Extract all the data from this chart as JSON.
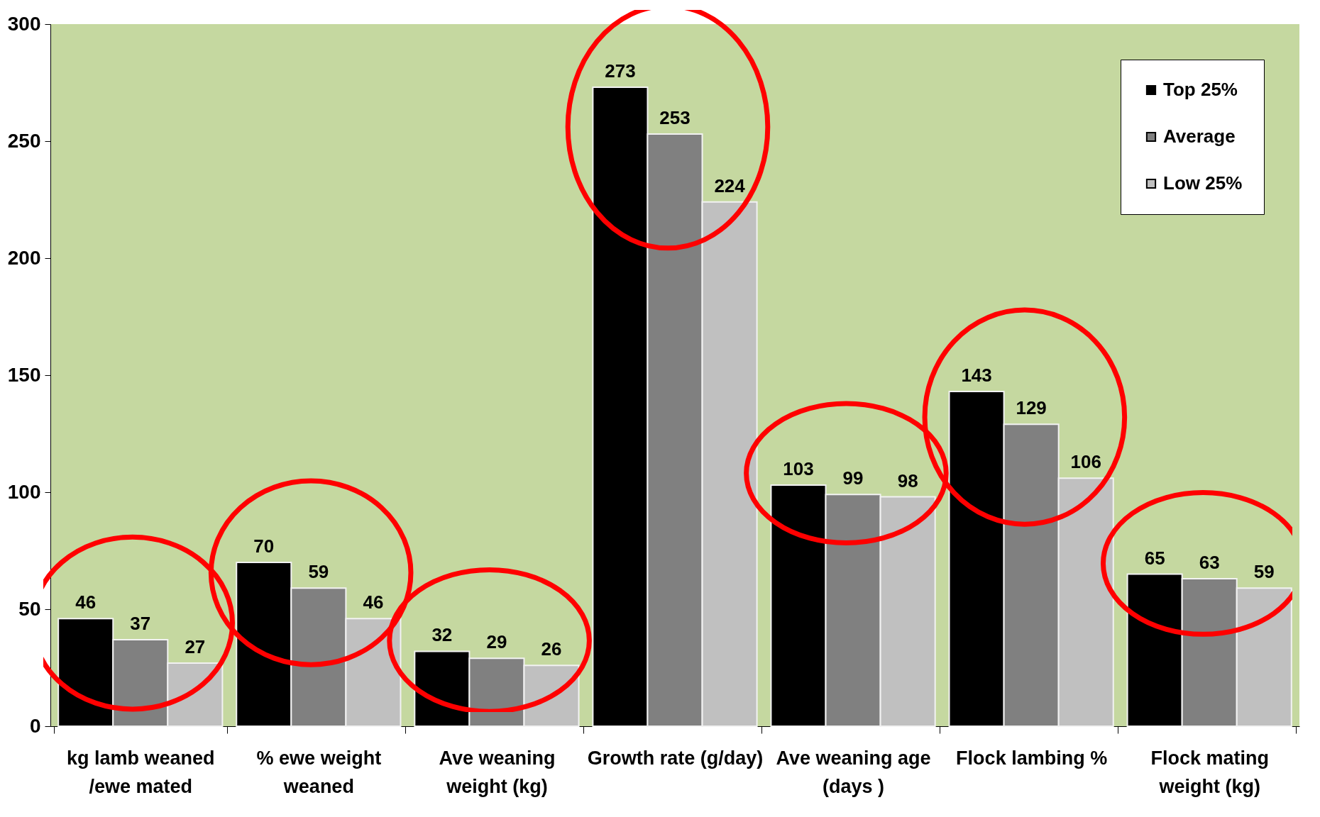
{
  "chart_data": {
    "type": "bar",
    "categories": [
      "kg lamb weaned\n/ewe mated",
      "% ewe weight\nweaned",
      "Ave weaning\nweight (kg)",
      "Growth rate (g/day)",
      "Ave  weaning age\n(days )",
      "Flock lambing %",
      "Flock mating\nweight (kg)"
    ],
    "series": [
      {
        "name": "Top 25%",
        "color": "#000000",
        "values": [
          46,
          70,
          32,
          273,
          103,
          143,
          65
        ]
      },
      {
        "name": "Average",
        "color": "#808080",
        "values": [
          37,
          59,
          29,
          253,
          99,
          129,
          63
        ]
      },
      {
        "name": "Low 25%",
        "color": "#c0c0c0",
        "values": [
          27,
          46,
          26,
          224,
          98,
          106,
          59
        ]
      }
    ],
    "ylim": [
      0,
      300
    ],
    "yticks": [
      0,
      50,
      100,
      150,
      200,
      250,
      300
    ],
    "data_labels": true,
    "legend": "top right",
    "grid": false
  }
}
